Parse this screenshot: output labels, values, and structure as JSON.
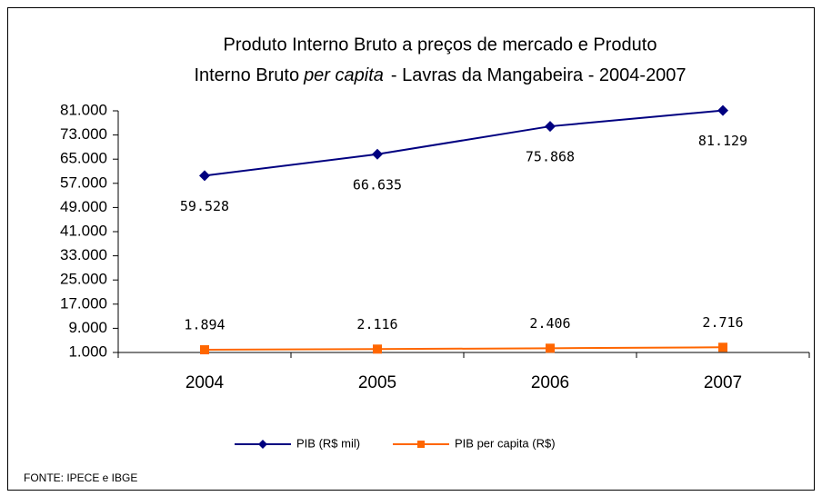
{
  "chart_data": {
    "type": "line",
    "title": [
      "Produto Interno Bruto a preços de mercado e  Produto",
      "Interno Bruto",
      "per capita",
      "- Lavras da Mangabeira - 2004-2007"
    ],
    "categories": [
      "2004",
      "2005",
      "2006",
      "2007"
    ],
    "series": [
      {
        "name": "PIB (R$ mil)",
        "color": "#000080",
        "marker": "diamond",
        "label_position": "below",
        "values": [
          59528,
          66635,
          75868,
          81129
        ],
        "value_labels": [
          "59.528",
          "66.635",
          "75.868",
          "81.129"
        ]
      },
      {
        "name": "PIB per capita (R$)",
        "color": "#ff6600",
        "marker": "square",
        "label_position": "above",
        "values": [
          1894,
          2116,
          2406,
          2716
        ],
        "value_labels": [
          "1.894",
          "2.116",
          "2.406",
          "2.716"
        ]
      }
    ],
    "ylim": [
      1000,
      81000
    ],
    "yticks": [
      {
        "value": 1000,
        "label": "1.000"
      },
      {
        "value": 9000,
        "label": "9.000"
      },
      {
        "value": 17000,
        "label": "17.000"
      },
      {
        "value": 25000,
        "label": "25.000"
      },
      {
        "value": 33000,
        "label": "33.000"
      },
      {
        "value": 41000,
        "label": "41.000"
      },
      {
        "value": 49000,
        "label": "49.000"
      },
      {
        "value": 57000,
        "label": "57.000"
      },
      {
        "value": 65000,
        "label": "65.000"
      },
      {
        "value": 73000,
        "label": "73.000"
      },
      {
        "value": 81000,
        "label": "81.000"
      }
    ],
    "grid": false,
    "legend": "bottom",
    "source": "FONTE: IPECE e IBGE"
  }
}
